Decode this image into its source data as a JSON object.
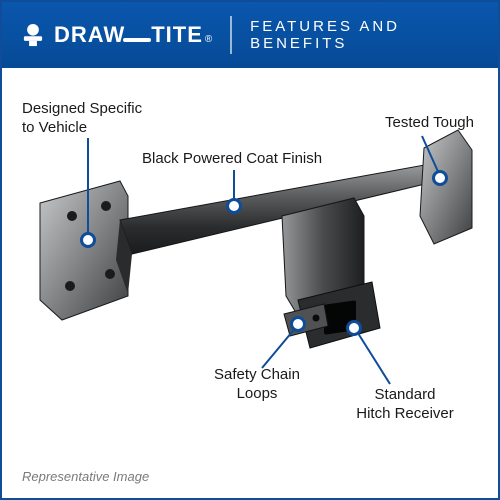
{
  "header": {
    "brand": "DRAW",
    "brand_suffix": "TITE",
    "title": "FEATURES AND BENEFITS"
  },
  "colors": {
    "brand_blue": "#0f4c99",
    "bg": "#ffffff",
    "metal_light": "#b7b9bb",
    "metal_mid": "#6f7173",
    "metal_dark": "#2d2f31",
    "text": "#1a1a1a",
    "footnote": "#7a7a7a"
  },
  "callouts": {
    "designed": "Designed Specific\nto Vehicle",
    "finish": "Black Powered Coat Finish",
    "tested": "Tested Tough",
    "loops": "Safety Chain\nLoops",
    "receiver": "Standard\nHitch Receiver"
  },
  "footnote": "Representative Image",
  "diagram": {
    "type": "infographic",
    "subject": "trailer hitch receiver",
    "line_color": "#0f4c99",
    "line_width": 2,
    "marker_border": 3,
    "marker_fill": "#ffffff"
  }
}
